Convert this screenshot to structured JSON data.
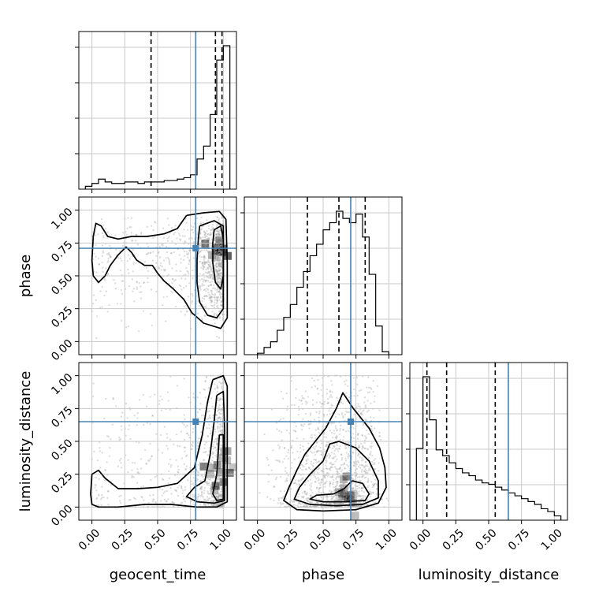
{
  "chart_data": {
    "type": "corner",
    "parameters": [
      "geocent_time",
      "phase",
      "luminosity_distance"
    ],
    "truths": [
      0.79,
      0.71,
      0.65
    ],
    "quantiles": [
      [
        0.45,
        0.94,
        0.99
      ],
      [
        0.38,
        0.62,
        0.82
      ],
      [
        0.03,
        0.18,
        0.55
      ]
    ],
    "axis_range": [
      -0.1,
      1.1
    ],
    "tick_labels": [
      "0.00",
      "0.25",
      "0.50",
      "0.75",
      "1.00"
    ],
    "histograms": [
      {
        "param": "geocent_time",
        "bin_edges": [
          -0.05,
          0.0,
          0.05,
          0.1,
          0.15,
          0.2,
          0.25,
          0.3,
          0.35,
          0.4,
          0.45,
          0.5,
          0.55,
          0.6,
          0.65,
          0.7,
          0.75,
          0.8,
          0.85,
          0.9,
          0.95,
          1.0,
          1.05
        ],
        "counts": [
          2,
          4,
          7,
          5,
          4,
          4,
          5,
          5,
          4,
          5,
          5,
          5,
          6,
          6,
          7,
          8,
          10,
          21,
          30,
          52,
          90,
          100
        ]
      },
      {
        "param": "phase",
        "bin_edges": [
          0.0,
          0.05,
          0.1,
          0.15,
          0.2,
          0.25,
          0.3,
          0.35,
          0.4,
          0.45,
          0.5,
          0.55,
          0.6,
          0.65,
          0.7,
          0.75,
          0.8,
          0.85,
          0.9,
          0.95,
          1.0
        ],
        "counts": [
          1,
          5,
          9,
          17,
          26,
          35,
          47,
          58,
          69,
          77,
          87,
          92,
          100,
          95,
          92,
          98,
          82,
          56,
          20,
          2
        ]
      },
      {
        "param": "luminosity_distance",
        "bin_edges": [
          -0.05,
          0.0,
          0.05,
          0.1,
          0.15,
          0.2,
          0.25,
          0.3,
          0.35,
          0.4,
          0.45,
          0.5,
          0.55,
          0.6,
          0.65,
          0.7,
          0.75,
          0.8,
          0.85,
          0.9,
          0.95,
          1.0,
          1.05
        ],
        "counts": [
          50,
          100,
          70,
          49,
          45,
          40,
          36,
          33,
          31,
          28,
          26,
          25,
          23,
          21,
          19,
          17,
          15,
          13,
          11,
          8,
          6,
          3
        ]
      }
    ],
    "scatter": [
      {
        "x_param": "geocent_time",
        "y_param": "phase",
        "contours": [
          {
            "level": "outer",
            "points": [
              [
                0.72,
                0.96
              ],
              [
                0.85,
                0.98
              ],
              [
                0.97,
                0.99
              ],
              [
                1.02,
                0.93
              ],
              [
                1.03,
                0.6
              ],
              [
                1.03,
                0.18
              ],
              [
                0.98,
                0.1
              ],
              [
                0.85,
                0.14
              ],
              [
                0.76,
                0.22
              ],
              [
                0.7,
                0.32
              ],
              [
                0.62,
                0.4
              ],
              [
                0.55,
                0.46
              ],
              [
                0.5,
                0.52
              ],
              [
                0.46,
                0.58
              ],
              [
                0.4,
                0.58
              ],
              [
                0.34,
                0.62
              ],
              [
                0.3,
                0.68
              ],
              [
                0.26,
                0.72
              ],
              [
                0.2,
                0.66
              ],
              [
                0.14,
                0.58
              ],
              [
                0.1,
                0.5
              ],
              [
                0.05,
                0.45
              ],
              [
                0.01,
                0.5
              ],
              [
                0.0,
                0.62
              ],
              [
                0.01,
                0.8
              ],
              [
                0.03,
                0.9
              ],
              [
                0.07,
                0.88
              ],
              [
                0.12,
                0.8
              ],
              [
                0.2,
                0.78
              ],
              [
                0.3,
                0.8
              ],
              [
                0.42,
                0.8
              ],
              [
                0.55,
                0.82
              ],
              [
                0.65,
                0.86
              ],
              [
                0.72,
                0.96
              ]
            ]
          },
          {
            "level": "middle",
            "points": [
              [
                0.82,
                0.88
              ],
              [
                0.93,
                0.92
              ],
              [
                1.0,
                0.88
              ],
              [
                1.0,
                0.65
              ],
              [
                1.0,
                0.25
              ],
              [
                0.95,
                0.18
              ],
              [
                0.88,
                0.2
              ],
              [
                0.82,
                0.3
              ],
              [
                0.8,
                0.45
              ],
              [
                0.8,
                0.62
              ],
              [
                0.81,
                0.78
              ],
              [
                0.82,
                0.88
              ]
            ]
          },
          {
            "level": "inner",
            "points": [
              [
                0.93,
                0.85
              ],
              [
                0.98,
                0.88
              ],
              [
                1.0,
                0.78
              ],
              [
                1.0,
                0.5
              ],
              [
                0.98,
                0.4
              ],
              [
                0.94,
                0.45
              ],
              [
                0.92,
                0.6
              ],
              [
                0.92,
                0.75
              ],
              [
                0.93,
                0.85
              ]
            ]
          }
        ]
      },
      {
        "x_param": "geocent_time",
        "y_param": "luminosity_distance",
        "contours": [
          {
            "level": "outer",
            "points": [
              [
                0.92,
                0.97
              ],
              [
                1.0,
                1.0
              ],
              [
                1.03,
                0.92
              ],
              [
                1.03,
                0.5
              ],
              [
                1.03,
                0.04
              ],
              [
                0.95,
                0.0
              ],
              [
                0.8,
                0.0
              ],
              [
                0.6,
                0.02
              ],
              [
                0.4,
                0.02
              ],
              [
                0.2,
                0.0
              ],
              [
                0.05,
                0.0
              ],
              [
                0.0,
                0.02
              ],
              [
                -0.01,
                0.1
              ],
              [
                0.0,
                0.25
              ],
              [
                0.05,
                0.28
              ],
              [
                0.1,
                0.22
              ],
              [
                0.2,
                0.14
              ],
              [
                0.35,
                0.14
              ],
              [
                0.5,
                0.15
              ],
              [
                0.65,
                0.18
              ],
              [
                0.78,
                0.3
              ],
              [
                0.84,
                0.55
              ],
              [
                0.88,
                0.8
              ],
              [
                0.92,
                0.97
              ]
            ]
          },
          {
            "level": "middle",
            "points": [
              [
                0.95,
                0.85
              ],
              [
                1.0,
                0.88
              ],
              [
                1.01,
                0.6
              ],
              [
                1.01,
                0.05
              ],
              [
                0.93,
                0.03
              ],
              [
                0.8,
                0.04
              ],
              [
                0.72,
                0.08
              ],
              [
                0.78,
                0.15
              ],
              [
                0.86,
                0.2
              ],
              [
                0.9,
                0.4
              ],
              [
                0.93,
                0.65
              ],
              [
                0.95,
                0.85
              ]
            ]
          },
          {
            "level": "inner",
            "points": [
              [
                0.97,
                0.55
              ],
              [
                1.0,
                0.55
              ],
              [
                1.0,
                0.06
              ],
              [
                0.95,
                0.05
              ],
              [
                0.92,
                0.1
              ],
              [
                0.95,
                0.25
              ],
              [
                0.96,
                0.4
              ],
              [
                0.97,
                0.55
              ]
            ]
          }
        ]
      },
      {
        "x_param": "phase",
        "y_param": "luminosity_distance",
        "contours": [
          {
            "level": "outer",
            "points": [
              [
                0.6,
                0.75
              ],
              [
                0.65,
                0.87
              ],
              [
                0.73,
                0.75
              ],
              [
                0.85,
                0.6
              ],
              [
                0.93,
                0.45
              ],
              [
                0.97,
                0.3
              ],
              [
                0.98,
                0.15
              ],
              [
                0.92,
                0.03
              ],
              [
                0.75,
                -0.02
              ],
              [
                0.5,
                -0.03
              ],
              [
                0.3,
                -0.02
              ],
              [
                0.2,
                0.05
              ],
              [
                0.24,
                0.15
              ],
              [
                0.3,
                0.28
              ],
              [
                0.36,
                0.4
              ],
              [
                0.44,
                0.5
              ],
              [
                0.52,
                0.6
              ],
              [
                0.6,
                0.75
              ]
            ]
          },
          {
            "level": "middle",
            "points": [
              [
                0.62,
                0.5
              ],
              [
                0.75,
                0.45
              ],
              [
                0.85,
                0.35
              ],
              [
                0.92,
                0.2
              ],
              [
                0.92,
                0.07
              ],
              [
                0.8,
                0.02
              ],
              [
                0.6,
                0.01
              ],
              [
                0.4,
                0.02
              ],
              [
                0.28,
                0.06
              ],
              [
                0.32,
                0.15
              ],
              [
                0.4,
                0.25
              ],
              [
                0.5,
                0.35
              ],
              [
                0.55,
                0.48
              ],
              [
                0.62,
                0.5
              ]
            ]
          },
          {
            "level": "inner",
            "points": [
              [
                0.72,
                0.2
              ],
              [
                0.8,
                0.18
              ],
              [
                0.85,
                0.1
              ],
              [
                0.82,
                0.05
              ],
              [
                0.65,
                0.04
              ],
              [
                0.5,
                0.04
              ],
              [
                0.4,
                0.06
              ],
              [
                0.45,
                0.09
              ],
              [
                0.58,
                0.1
              ],
              [
                0.66,
                0.14
              ],
              [
                0.72,
                0.2
              ]
            ]
          }
        ]
      }
    ],
    "colors": {
      "truth": "#4682b4",
      "contour": "#000000",
      "points": "#a0a0a0",
      "grid": "#c8c8c8"
    }
  }
}
